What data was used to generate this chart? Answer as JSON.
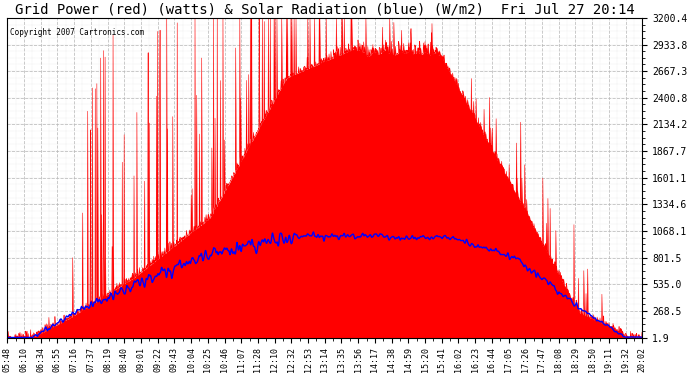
{
  "title": "Grid Power (red) (watts) & Solar Radiation (blue) (W/m2)  Fri Jul 27 20:14",
  "copyright": "Copyright 2007 Cartronics.com",
  "ymin": 1.9,
  "ymax": 3200.4,
  "yticks": [
    1.9,
    268.5,
    535.0,
    801.5,
    1068.1,
    1334.6,
    1601.1,
    1867.7,
    2134.2,
    2400.8,
    2667.3,
    2933.8,
    3200.4
  ],
  "background_color": "#ffffff",
  "plot_bg_color": "#ffffff",
  "grid_color": "#bbbbbb",
  "red_color": "#ff0000",
  "blue_color": "#0000ff",
  "title_fontsize": 10,
  "tick_fontsize": 7,
  "xtick_labels": [
    "05:48",
    "06:10",
    "06:34",
    "06:55",
    "07:16",
    "07:37",
    "08:19",
    "08:40",
    "09:01",
    "09:22",
    "09:43",
    "10:04",
    "10:25",
    "10:46",
    "11:07",
    "11:28",
    "12:10",
    "12:32",
    "12:53",
    "13:14",
    "13:35",
    "13:56",
    "14:17",
    "14:38",
    "14:59",
    "15:20",
    "15:41",
    "16:02",
    "16:23",
    "16:44",
    "17:05",
    "17:26",
    "17:47",
    "18:08",
    "18:29",
    "18:50",
    "19:11",
    "19:32",
    "20:02"
  ]
}
